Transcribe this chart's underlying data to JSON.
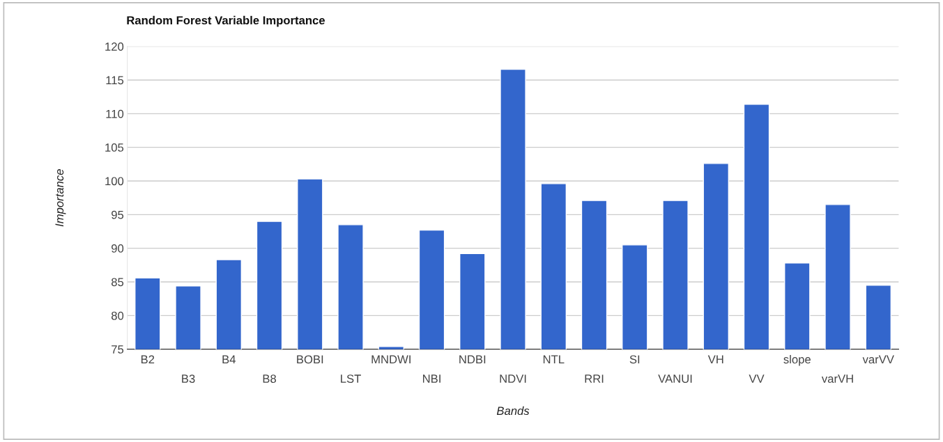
{
  "chart_data": {
    "type": "bar",
    "title": "Random Forest Variable Importance",
    "xlabel": "Bands",
    "ylabel": "Importance",
    "categories": [
      "B2",
      "B3",
      "B4",
      "B8",
      "BOBI",
      "LST",
      "MNDWI",
      "NBI",
      "NDBI",
      "NDVI",
      "NTL",
      "RRI",
      "SI",
      "VANUI",
      "VH",
      "VV",
      "slope",
      "varVH",
      "varVV"
    ],
    "values": [
      85.6,
      84.4,
      88.3,
      94.0,
      100.3,
      93.5,
      75.4,
      92.7,
      89.2,
      116.6,
      99.6,
      97.1,
      90.5,
      97.1,
      102.6,
      111.4,
      87.8,
      96.5,
      84.5
    ],
    "color": "#3366cc",
    "ylim": [
      75,
      120
    ],
    "yticks": [
      75,
      80,
      85,
      90,
      95,
      100,
      105,
      110,
      115,
      120
    ],
    "grid": "y"
  }
}
